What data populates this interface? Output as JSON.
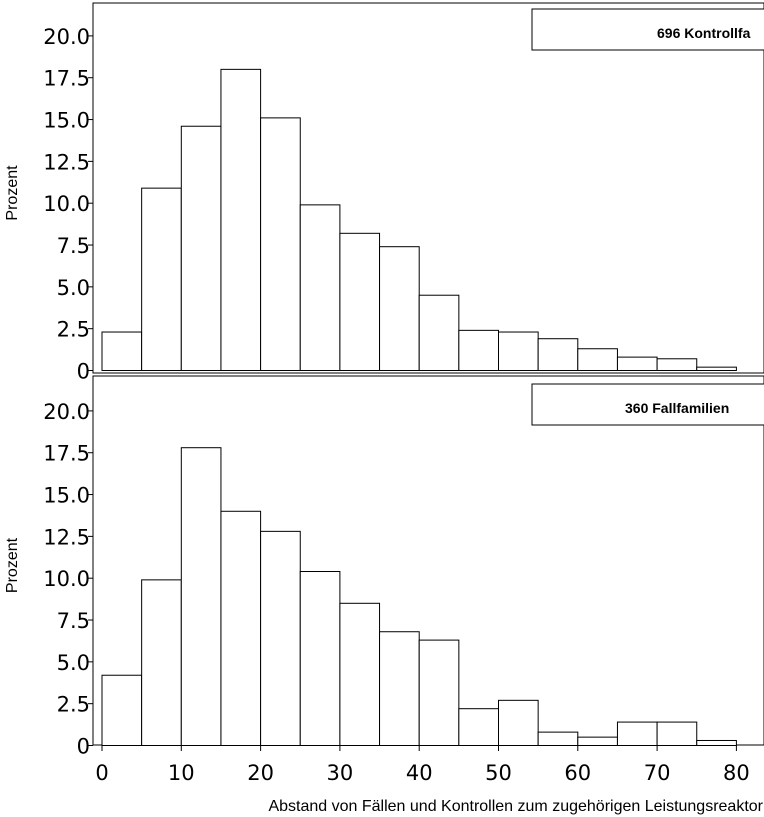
{
  "chart_data": [
    {
      "type": "bar",
      "legend": "696 Kontrollfa",
      "ylabel": "Prozent",
      "xlabel": "",
      "ylim": [
        0,
        22
      ],
      "yticks": [
        "0",
        "2.5",
        "5.0",
        "7.5",
        "10.0",
        "12.5",
        "15.0",
        "17.5",
        "20.0"
      ],
      "bin_edges": [
        0,
        5,
        10,
        15,
        20,
        25,
        30,
        35,
        40,
        45,
        50,
        55,
        60,
        65,
        70,
        75,
        80
      ],
      "values": [
        2.3,
        10.9,
        14.6,
        18.0,
        15.1,
        9.9,
        8.2,
        7.4,
        4.5,
        2.4,
        2.3,
        1.9,
        1.3,
        0.8,
        0.7,
        0.2
      ]
    },
    {
      "type": "bar",
      "legend": "360 Fallfamilien",
      "ylabel": "Prozent",
      "xlabel": "Abstand von Fällen und Kontrollen zum zugehörigen Leistungsreaktor",
      "ylim": [
        0,
        22
      ],
      "yticks": [
        "0",
        "2.5",
        "5.0",
        "7.5",
        "10.0",
        "12.5",
        "15.0",
        "17.5",
        "20.0"
      ],
      "xticks": [
        "0",
        "10",
        "20",
        "30",
        "40",
        "50",
        "60",
        "70",
        "80"
      ],
      "bin_edges": [
        0,
        5,
        10,
        15,
        20,
        25,
        30,
        35,
        40,
        45,
        50,
        55,
        60,
        65,
        70,
        75,
        80
      ],
      "values": [
        4.2,
        9.9,
        17.8,
        14.0,
        12.8,
        10.4,
        8.5,
        6.8,
        6.3,
        2.2,
        2.7,
        0.8,
        0.5,
        1.4,
        1.4,
        0.3
      ]
    }
  ]
}
